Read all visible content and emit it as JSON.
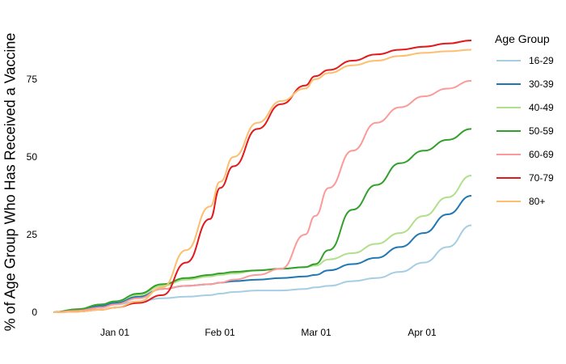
{
  "chart_data": {
    "type": "line",
    "title": "",
    "xlabel": "",
    "ylabel": "% of Age Group Who Has Received a Vaccine",
    "ylim": [
      0,
      90
    ],
    "yticks": [
      0,
      25,
      50,
      75
    ],
    "xticks": [
      "Jan 01",
      "Feb 01",
      "Mar 01",
      "Apr 01"
    ],
    "grid": false,
    "legend_position": "right",
    "legend_title": "Age Group",
    "x_day_offsets_from_jan01": [
      -18,
      -11,
      -4,
      0,
      7,
      14,
      21,
      28,
      31,
      35,
      42,
      49,
      56,
      59,
      63,
      70,
      77,
      84,
      91,
      98,
      105
    ],
    "x": [
      "Dec 14",
      "Dec 21",
      "Dec 28",
      "Jan 01",
      "Jan 08",
      "Jan 15",
      "Jan 22",
      "Jan 29",
      "Feb 01",
      "Feb 05",
      "Feb 12",
      "Feb 19",
      "Feb 26",
      "Mar 01",
      "Mar 05",
      "Mar 12",
      "Mar 19",
      "Mar 26",
      "Apr 02",
      "Apr 09",
      "Apr 16"
    ],
    "series": [
      {
        "name": "16-29",
        "color": "#a6cee3",
        "values": [
          0,
          0.5,
          1.5,
          2.5,
          3.5,
          4.5,
          5,
          5.5,
          6,
          6.5,
          7,
          7,
          7.5,
          8,
          8.5,
          10,
          11,
          13,
          16,
          21,
          28
        ]
      },
      {
        "name": "30-39",
        "color": "#1f78b4",
        "values": [
          0,
          0.8,
          2,
          3,
          5,
          7.5,
          8.5,
          9,
          9.5,
          10,
          10.5,
          11,
          11.5,
          12,
          13.5,
          15.5,
          17.5,
          21,
          25.5,
          31.5,
          37.5
        ]
      },
      {
        "name": "40-49",
        "color": "#b2df8a",
        "values": [
          0,
          1,
          2.5,
          3.5,
          5.5,
          8.5,
          10.5,
          11.5,
          12,
          12.5,
          13.5,
          14,
          14.5,
          15,
          17,
          19,
          22,
          25.5,
          31,
          37,
          44
        ]
      },
      {
        "name": "50-59",
        "color": "#33a02c",
        "values": [
          0,
          1,
          2.5,
          3.5,
          6,
          9,
          11,
          12,
          12.5,
          13,
          13.5,
          14,
          14.5,
          15.5,
          20,
          33,
          41,
          48,
          52,
          55.5,
          59
        ]
      },
      {
        "name": "60-69",
        "color": "#fb9a99",
        "values": [
          0,
          0.5,
          1.5,
          2.5,
          4.5,
          7.5,
          8.5,
          9,
          9.5,
          10.5,
          12,
          14,
          25,
          31,
          40,
          52,
          61,
          66,
          69.5,
          72,
          74.5
        ]
      },
      {
        "name": "70-79",
        "color": "#e31a1c",
        "values": [
          0,
          0.2,
          0.8,
          1.5,
          3,
          5.5,
          16,
          30,
          40,
          47,
          59,
          67,
          73,
          76,
          78,
          81,
          83,
          84.5,
          85.5,
          86.5,
          87.5
        ]
      },
      {
        "name": "80+",
        "color": "#fdbf6f",
        "values": [
          0,
          0.2,
          0.8,
          1.5,
          3.5,
          8,
          20,
          34,
          42,
          50,
          61,
          68,
          72,
          75,
          77,
          79.5,
          81,
          82.5,
          83.5,
          84,
          84.5
        ]
      }
    ]
  },
  "axes": {
    "ylabel": "% of Age Group Who Has Received a Vaccine",
    "yticks": [
      "0",
      "25",
      "50",
      "75"
    ],
    "xticks": [
      "Jan 01",
      "Feb 01",
      "Mar 01",
      "Apr 01"
    ]
  },
  "legend": {
    "title": "Age Group",
    "items": [
      {
        "label": "16-29",
        "color": "#a6cee3"
      },
      {
        "label": "30-39",
        "color": "#1f78b4"
      },
      {
        "label": "40-49",
        "color": "#b2df8a"
      },
      {
        "label": "50-59",
        "color": "#33a02c"
      },
      {
        "label": "60-69",
        "color": "#fb9a99"
      },
      {
        "label": "70-79",
        "color": "#e31a1c"
      },
      {
        "label": "80+",
        "color": "#fdbf6f"
      }
    ]
  }
}
